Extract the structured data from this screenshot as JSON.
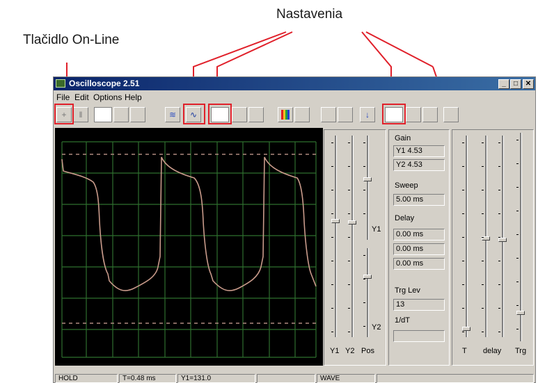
{
  "annotations": {
    "nastavenia": "Nastavenia",
    "online_button": "Tlačidlo On-Line"
  },
  "window": {
    "title": "Oscilloscope 2.51",
    "buttons": {
      "minimize": "_",
      "maximize": "□",
      "close": "✕"
    }
  },
  "menu": {
    "items": [
      "File",
      "Edit",
      "Options",
      "Help"
    ]
  },
  "panel": {
    "gain_label": "Gain",
    "gain_y1": "Y1  4.53",
    "gain_y2": "Y2  4.53",
    "sweep_label": "Sweep",
    "sweep_value": "5.00 ms",
    "delay_label": "Delay",
    "delay_values": [
      "0.00 ms",
      "0.00 ms",
      "0.00 ms"
    ],
    "trg_lev_label": "Trg Lev",
    "trg_lev_value": "13",
    "one_dt_label": "1/dT",
    "one_dt_value": ""
  },
  "sliders_left": {
    "y1_side": "Y1",
    "y2_side": "Y2",
    "bottom": [
      "Y1",
      "Y2",
      "Pos"
    ]
  },
  "sliders_right": {
    "bottom": [
      "T",
      "delay",
      "Trg"
    ]
  },
  "status": {
    "mode": "HOLD",
    "t": "T=0.48 ms",
    "y1": "Y1=131.0",
    "wave": "WAVE"
  },
  "colors": {
    "trace": "#c89a8a",
    "grid": "#2f6f2f",
    "highlight": "#e0202a",
    "title_bar": "#0a246a"
  },
  "icons": [
    "online-icon",
    "pause-icon",
    "wave-icon",
    "sine-icon",
    "color-bars-icon",
    "arrow-down-icon"
  ]
}
